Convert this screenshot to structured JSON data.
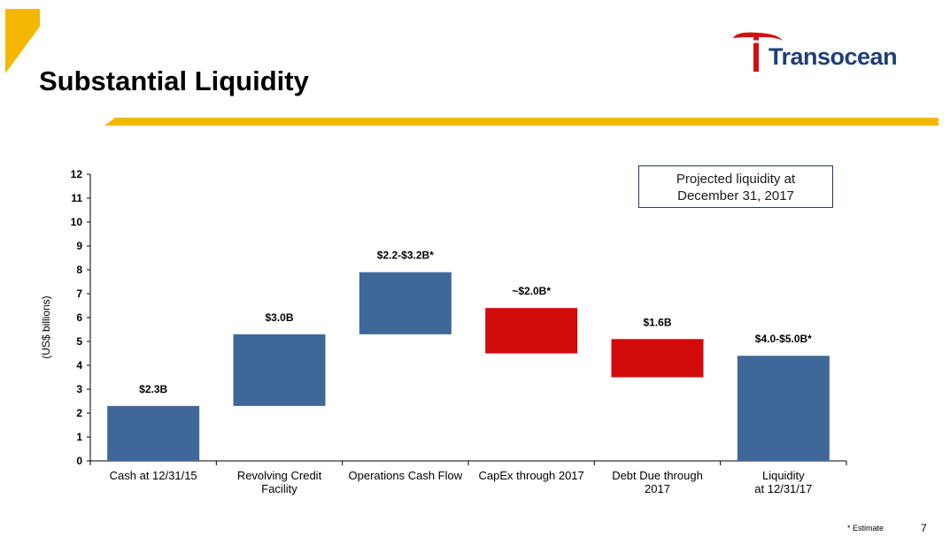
{
  "slide": {
    "title": "Substantial Liquidity",
    "logo_text": "Transocean",
    "footnote": "* Estimate",
    "page_number": "7",
    "accent_color": "#f5b800",
    "logo_color": "#1f3f78",
    "logo_mark_color": "#d40f0f"
  },
  "callout": {
    "line1": "Projected liquidity at",
    "line2": "December 31, 2017"
  },
  "chart_data": {
    "type": "bar",
    "subtype": "waterfall",
    "title": "",
    "xlabel": "",
    "ylabel": "(US$ billions)",
    "ylim": [
      0,
      12
    ],
    "yticks": [
      0,
      1,
      2,
      3,
      4,
      5,
      6,
      7,
      8,
      9,
      10,
      11,
      12
    ],
    "grid": false,
    "categories": [
      "Cash at 12/31/15",
      "Revolving Credit Facility",
      "Operations Cash Flow",
      "CapEx through 2017",
      "Debt Due through 2017",
      "Liquidity at 12/31/17"
    ],
    "category_label_lines": [
      [
        "Cash at 12/31/15"
      ],
      [
        "Revolving Credit",
        "Facility"
      ],
      [
        "Operations Cash Flow"
      ],
      [
        "CapEx through 2017"
      ],
      [
        "Debt Due through",
        "2017"
      ],
      [
        "Liquidity",
        "at 12/31/17"
      ]
    ],
    "bars": [
      {
        "bottom": 0,
        "top": 2.3,
        "kind": "increase",
        "label": "$2.3B"
      },
      {
        "bottom": 2.3,
        "top": 5.3,
        "kind": "increase",
        "label": "$3.0B"
      },
      {
        "bottom": 5.3,
        "top": 7.9,
        "kind": "increase",
        "label": "$2.2-$3.2B*"
      },
      {
        "bottom": 4.5,
        "top": 6.4,
        "kind": "decrease",
        "label": "~$2.0B*"
      },
      {
        "bottom": 3.5,
        "top": 5.1,
        "kind": "decrease",
        "label": "$1.6B"
      },
      {
        "bottom": 0,
        "top": 4.4,
        "kind": "total",
        "label": "$4.0-$5.0B*"
      }
    ],
    "colors": {
      "increase": "#3f6899",
      "total": "#3f6899",
      "decrease": "#d10a0a"
    }
  }
}
